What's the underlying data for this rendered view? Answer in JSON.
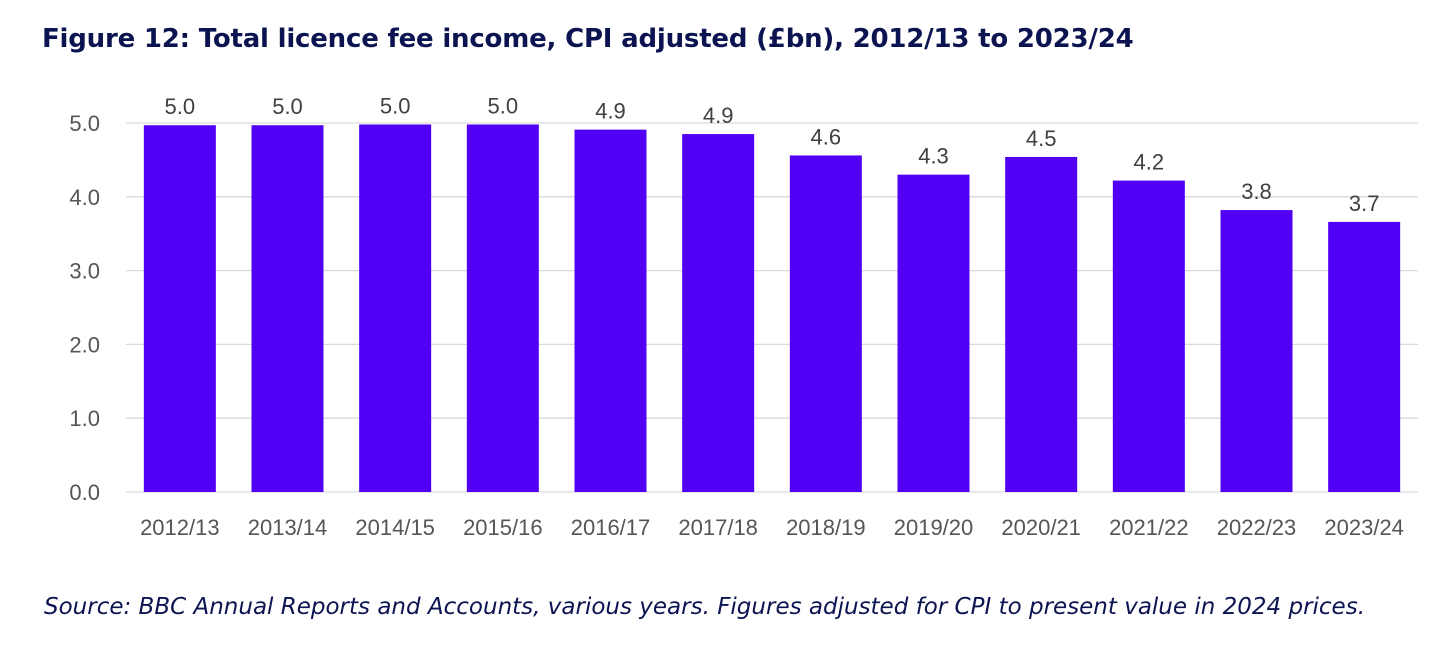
{
  "title": "Figure 12: Total licence fee income, CPI adjusted (£bn), 2012/13 to 2023/24",
  "source_note": "Source: BBC Annual Reports and Accounts, various years. Figures adjusted for CPI to present value in 2024 prices.",
  "colors": {
    "bar": "#5200F5",
    "title": "#0B1450",
    "grid": "#D9D9D9"
  },
  "chart_data": {
    "type": "bar",
    "title": "Figure 12: Total licence fee income, CPI adjusted (£bn), 2012/13 to 2023/24",
    "xlabel": "",
    "ylabel": "",
    "categories": [
      "2012/13",
      "2013/14",
      "2014/15",
      "2015/16",
      "2016/17",
      "2017/18",
      "2018/19",
      "2019/20",
      "2020/21",
      "2021/22",
      "2022/23",
      "2023/24"
    ],
    "values": [
      4.97,
      4.97,
      4.98,
      4.98,
      4.91,
      4.85,
      4.56,
      4.3,
      4.54,
      4.22,
      3.82,
      3.66
    ],
    "data_labels": [
      "5.0",
      "5.0",
      "5.0",
      "5.0",
      "4.9",
      "4.9",
      "4.6",
      "4.3",
      "4.5",
      "4.2",
      "3.8",
      "3.7"
    ],
    "ylim": [
      0,
      5
    ],
    "yticks": [
      0,
      1,
      2,
      3,
      4,
      5
    ],
    "ytick_labels": [
      "0.0",
      "1.0",
      "2.0",
      "3.0",
      "4.0",
      "5.0"
    ],
    "grid": true,
    "legend": "none"
  }
}
